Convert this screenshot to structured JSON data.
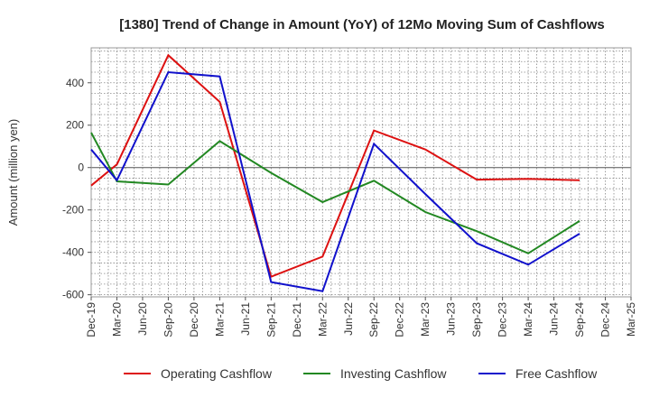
{
  "chart_data": {
    "type": "line",
    "title": "[1380]  Trend of Change in Amount (YoY) of 12Mo Moving Sum of Cashflows",
    "xlabel": "",
    "ylabel": "Amount (million yen)",
    "ylim": [
      -610,
      565
    ],
    "yticks": [
      400,
      200,
      0,
      -200,
      -400,
      -600
    ],
    "ytick_labels": [
      "400",
      "200",
      "0",
      "-200",
      "-400",
      "-600"
    ],
    "categories": [
      "Dec-19",
      "Mar-20",
      "Jun-20",
      "Sep-20",
      "Dec-20",
      "Mar-21",
      "Jun-21",
      "Sep-21",
      "Dec-21",
      "Mar-22",
      "Jun-22",
      "Sep-22",
      "Dec-22",
      "Mar-23",
      "Jun-23",
      "Sep-23",
      "Dec-23",
      "Mar-24",
      "Jun-24",
      "Sep-24",
      "Dec-24",
      "Mar-25"
    ],
    "legend_position": "bottom",
    "grid": true,
    "series": [
      {
        "name": "Operating Cashflow",
        "color": "#dd1111",
        "points": [
          [
            0,
            -85
          ],
          [
            1,
            15
          ],
          [
            3,
            530
          ],
          [
            5,
            310
          ],
          [
            7,
            -515
          ],
          [
            9,
            -420
          ],
          [
            11,
            175
          ],
          [
            13,
            85
          ],
          [
            15,
            -57
          ],
          [
            17,
            -53
          ],
          [
            19,
            -60
          ]
        ]
      },
      {
        "name": "Investing Cashflow",
        "color": "#228822",
        "points": [
          [
            0,
            165
          ],
          [
            1,
            -65
          ],
          [
            3,
            -80
          ],
          [
            5,
            125
          ],
          [
            7,
            -25
          ],
          [
            9,
            -163
          ],
          [
            11,
            -62
          ],
          [
            13,
            -210
          ],
          [
            15,
            -300
          ],
          [
            17,
            -405
          ],
          [
            19,
            -252
          ]
        ]
      },
      {
        "name": "Free Cashflow",
        "color": "#1111cc",
        "points": [
          [
            0,
            85
          ],
          [
            1,
            -60
          ],
          [
            3,
            450
          ],
          [
            5,
            430
          ],
          [
            7,
            -540
          ],
          [
            9,
            -583
          ],
          [
            11,
            112
          ],
          [
            13,
            -125
          ],
          [
            15,
            -357
          ],
          [
            17,
            -458
          ],
          [
            19,
            -312
          ]
        ]
      }
    ]
  }
}
